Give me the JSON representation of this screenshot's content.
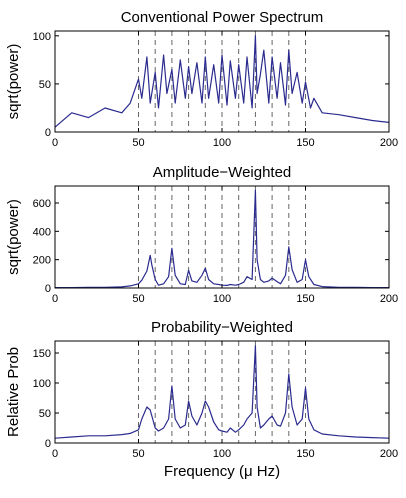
{
  "colors": {
    "line": "#2b2b8f",
    "guide": "#666666",
    "axis": "#000000"
  },
  "chart_data": [
    {
      "type": "line",
      "title": "Conventional Power Spectrum",
      "xlabel": "",
      "ylabel": "sqrt(power)",
      "xlim": [
        0,
        200
      ],
      "ylim": [
        0,
        105
      ],
      "xticks": [
        0,
        50,
        100,
        150,
        200
      ],
      "yticks": [
        0,
        50,
        100
      ],
      "grid": false,
      "reference_lines_x": [
        50,
        60,
        70,
        80,
        90,
        100,
        110,
        120,
        130,
        140,
        150
      ],
      "series": [
        {
          "x": [
            0,
            10,
            20,
            30,
            40,
            45,
            50,
            52,
            55,
            57,
            60,
            62,
            65,
            67,
            70,
            72,
            75,
            78,
            80,
            82,
            85,
            88,
            90,
            92,
            95,
            98,
            100,
            103,
            105,
            108,
            110,
            113,
            115,
            118,
            120,
            121,
            123,
            125,
            128,
            130,
            133,
            135,
            138,
            140,
            142,
            145,
            148,
            150,
            153,
            155,
            160,
            170,
            180,
            190,
            200
          ],
          "y": [
            5,
            20,
            15,
            25,
            20,
            30,
            55,
            35,
            78,
            30,
            62,
            25,
            80,
            40,
            65,
            30,
            75,
            35,
            68,
            40,
            72,
            30,
            78,
            35,
            70,
            30,
            80,
            28,
            74,
            35,
            70,
            30,
            78,
            25,
            100,
            40,
            60,
            85,
            30,
            78,
            35,
            72,
            28,
            85,
            40,
            62,
            30,
            52,
            25,
            35,
            20,
            18,
            15,
            12,
            10
          ]
        }
      ]
    },
    {
      "type": "line",
      "title": "Amplitude−Weighted",
      "xlabel": "",
      "ylabel": "sqrt(power)",
      "xlim": [
        0,
        200
      ],
      "ylim": [
        0,
        720
      ],
      "xticks": [
        0,
        50,
        100,
        150,
        200
      ],
      "yticks": [
        0,
        200,
        400,
        600
      ],
      "grid": false,
      "reference_lines_x": [
        50,
        60,
        70,
        80,
        90,
        100,
        110,
        120,
        130,
        140,
        150
      ],
      "series": [
        {
          "x": [
            0,
            10,
            20,
            30,
            40,
            45,
            50,
            52,
            55,
            57,
            58,
            60,
            62,
            65,
            68,
            70,
            72,
            75,
            78,
            80,
            82,
            85,
            88,
            90,
            92,
            95,
            98,
            100,
            103,
            105,
            108,
            110,
            113,
            115,
            118,
            120,
            121,
            123,
            125,
            128,
            130,
            133,
            135,
            138,
            140,
            142,
            145,
            148,
            150,
            152,
            155,
            160,
            170,
            180,
            190,
            200
          ],
          "y": [
            3,
            3,
            4,
            5,
            8,
            15,
            30,
            55,
            120,
            230,
            160,
            60,
            20,
            30,
            80,
            280,
            90,
            30,
            25,
            125,
            50,
            40,
            90,
            140,
            60,
            30,
            25,
            20,
            18,
            25,
            20,
            25,
            40,
            80,
            60,
            690,
            200,
            60,
            40,
            50,
            70,
            45,
            30,
            90,
            290,
            130,
            40,
            60,
            200,
            80,
            25,
            10,
            5,
            4,
            3,
            3
          ]
        }
      ]
    },
    {
      "type": "line",
      "title": "Probability−Weighted",
      "xlabel": "Frequency (μ Hz)",
      "ylabel": "Relative Prob",
      "xlim": [
        0,
        200
      ],
      "ylim": [
        0,
        170
      ],
      "xticks": [
        0,
        50,
        100,
        150,
        200
      ],
      "yticks": [
        0,
        50,
        100,
        150
      ],
      "grid": false,
      "reference_lines_x": [
        50,
        60,
        70,
        80,
        90,
        100,
        110,
        120,
        130,
        140,
        150
      ],
      "series": [
        {
          "x": [
            0,
            10,
            20,
            30,
            40,
            45,
            50,
            52,
            55,
            57,
            60,
            62,
            65,
            68,
            70,
            72,
            75,
            78,
            80,
            82,
            85,
            88,
            90,
            92,
            95,
            98,
            100,
            103,
            105,
            108,
            110,
            113,
            115,
            118,
            120,
            121,
            123,
            125,
            128,
            130,
            133,
            135,
            138,
            140,
            142,
            145,
            148,
            150,
            152,
            155,
            160,
            170,
            180,
            190,
            200
          ],
          "y": [
            8,
            10,
            12,
            12,
            14,
            16,
            22,
            40,
            60,
            55,
            25,
            20,
            25,
            40,
            95,
            40,
            25,
            30,
            70,
            45,
            30,
            50,
            70,
            60,
            35,
            22,
            20,
            18,
            25,
            18,
            22,
            30,
            40,
            50,
            162,
            60,
            25,
            30,
            40,
            45,
            30,
            28,
            50,
            115,
            60,
            30,
            40,
            92,
            40,
            22,
            15,
            12,
            10,
            9,
            8
          ]
        }
      ]
    }
  ]
}
